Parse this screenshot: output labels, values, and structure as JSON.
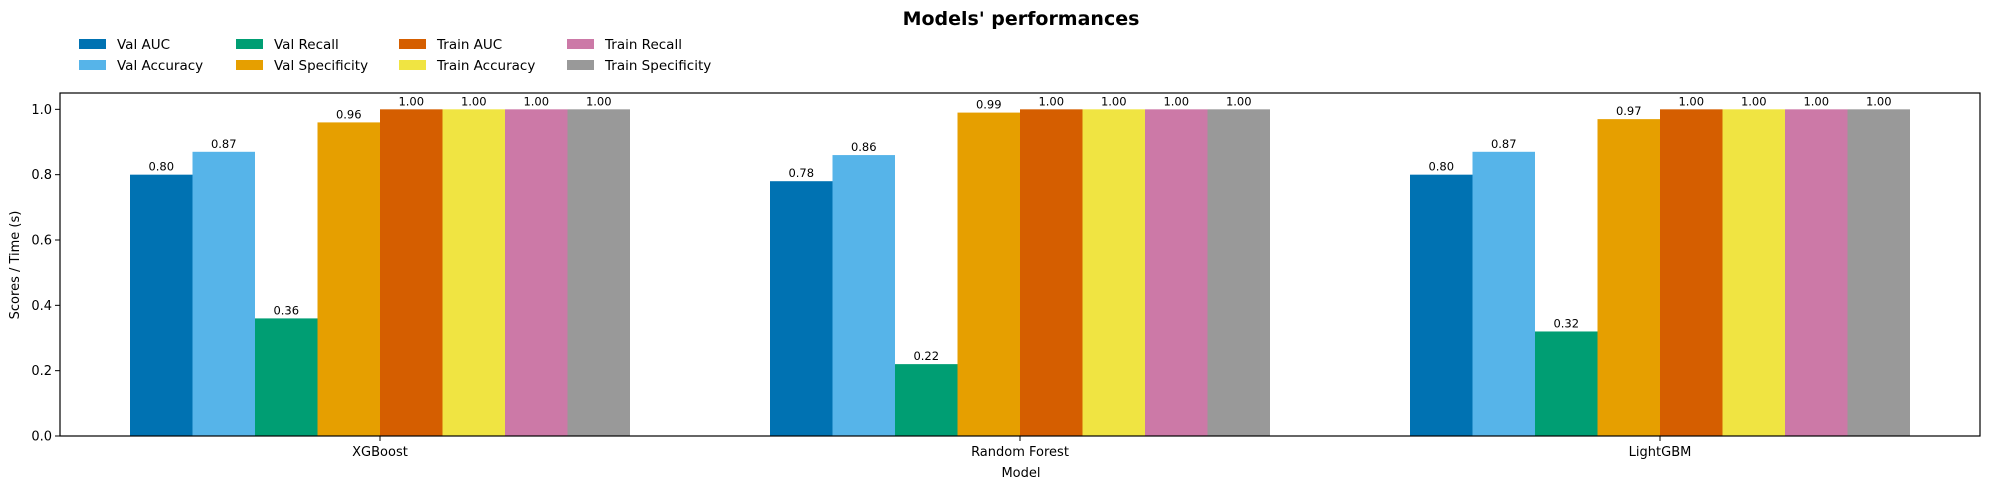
{
  "chart_data": {
    "type": "bar",
    "title": "Models' performances",
    "xlabel": "Model",
    "ylabel": "Scores / Time (s)",
    "ylim": [
      0,
      1.05
    ],
    "yticks": [
      "0.0",
      "0.2",
      "0.4",
      "0.6",
      "0.8",
      "1.0"
    ],
    "grid": false,
    "legend_position": "top-left",
    "categories": [
      "XGBoost",
      "Random Forest",
      "LightGBM"
    ],
    "series": [
      {
        "name": "Val AUC",
        "color": "#0072B2",
        "values": [
          0.8,
          0.78,
          0.8
        ],
        "labels": [
          "0.80",
          "0.78",
          "0.80"
        ]
      },
      {
        "name": "Val Accuracy",
        "color": "#56B4E9",
        "values": [
          0.87,
          0.86,
          0.87
        ],
        "labels": [
          "0.87",
          "0.86",
          "0.87"
        ]
      },
      {
        "name": "Val Recall",
        "color": "#009E73",
        "values": [
          0.36,
          0.22,
          0.32
        ],
        "labels": [
          "0.36",
          "0.22",
          "0.32"
        ]
      },
      {
        "name": "Val Specificity",
        "color": "#E69F00",
        "values": [
          0.96,
          0.99,
          0.97
        ],
        "labels": [
          "0.96",
          "0.99",
          "0.97"
        ]
      },
      {
        "name": "Train AUC",
        "color": "#D55E00",
        "values": [
          1.0,
          1.0,
          1.0
        ],
        "labels": [
          "1.00",
          "1.00",
          "1.00"
        ]
      },
      {
        "name": "Train Accuracy",
        "color": "#F0E442",
        "values": [
          1.0,
          1.0,
          1.0
        ],
        "labels": [
          "1.00",
          "1.00",
          "1.00"
        ]
      },
      {
        "name": "Train Recall",
        "color": "#CC79A7",
        "values": [
          1.0,
          1.0,
          1.0
        ],
        "labels": [
          "1.00",
          "1.00",
          "1.00"
        ]
      },
      {
        "name": "Train Specificity",
        "color": "#999999",
        "values": [
          1.0,
          1.0,
          1.0
        ],
        "labels": [
          "1.00",
          "1.00",
          "1.00"
        ]
      }
    ]
  }
}
